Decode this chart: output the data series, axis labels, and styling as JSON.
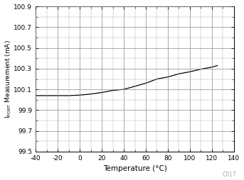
{
  "xlabel": "Temperature (°C)",
  "xlim": [
    -40,
    140
  ],
  "ylim": [
    99.5,
    100.9
  ],
  "xticks": [
    -40,
    -20,
    0,
    20,
    40,
    60,
    80,
    100,
    120,
    140
  ],
  "yticks": [
    99.5,
    99.7,
    99.9,
    100.1,
    100.3,
    100.5,
    100.7,
    100.9
  ],
  "line_color": "#000000",
  "line_x": [
    -40,
    -20,
    -10,
    0,
    10,
    20,
    30,
    40,
    50,
    60,
    70,
    75,
    80,
    90,
    100,
    110,
    115,
    120,
    125
  ],
  "line_y": [
    100.04,
    100.04,
    100.04,
    100.045,
    100.055,
    100.07,
    100.09,
    100.1,
    100.13,
    100.16,
    100.2,
    100.21,
    100.22,
    100.25,
    100.27,
    100.295,
    100.305,
    100.315,
    100.33
  ],
  "watermark": "C017",
  "background_color": "#ffffff",
  "grid_major_color": "#aaaaaa",
  "grid_minor_color": "#cccccc",
  "ylabel_main": "Measurement (mA)",
  "ylabel_sub": "I",
  "ylabel_subscript": "PORT"
}
